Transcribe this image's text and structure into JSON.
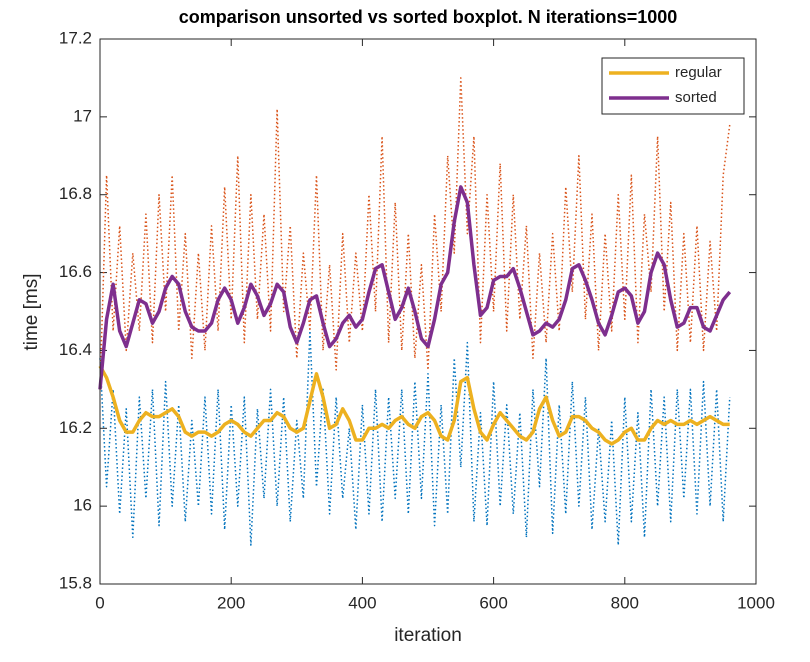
{
  "chart_data": {
    "type": "line",
    "title": "comparison unsorted vs sorted boxplot. N iterations=1000",
    "x_label": "iteration",
    "y_label": "time [ms]",
    "xlim": [
      0,
      1000
    ],
    "ylim": [
      15.8,
      17.2
    ],
    "xticks": [
      0,
      200,
      400,
      600,
      800,
      1000
    ],
    "yticks": [
      15.8,
      16,
      16.2,
      16.4,
      16.6,
      16.8,
      17,
      17.2
    ],
    "legend": "northeast",
    "x": [
      0,
      10,
      20,
      30,
      40,
      50,
      60,
      70,
      80,
      90,
      100,
      110,
      120,
      130,
      140,
      150,
      160,
      170,
      180,
      190,
      200,
      210,
      220,
      230,
      240,
      250,
      260,
      270,
      280,
      290,
      300,
      310,
      320,
      330,
      340,
      350,
      360,
      370,
      380,
      390,
      400,
      410,
      420,
      430,
      440,
      450,
      460,
      470,
      480,
      490,
      500,
      510,
      520,
      530,
      540,
      550,
      560,
      570,
      580,
      590,
      600,
      610,
      620,
      630,
      640,
      650,
      660,
      670,
      680,
      690,
      700,
      710,
      720,
      730,
      740,
      750,
      760,
      770,
      780,
      790,
      800,
      810,
      820,
      830,
      840,
      850,
      860,
      870,
      880,
      890,
      900,
      910,
      920,
      930,
      940,
      950,
      960
    ],
    "series": [
      {
        "color": "#0072BD",
        "style": "dotted",
        "values": [
          16.38,
          16.05,
          16.3,
          15.98,
          16.25,
          15.92,
          16.28,
          16.02,
          16.3,
          15.95,
          16.32,
          16.0,
          16.26,
          15.96,
          16.22,
          16.0,
          16.28,
          15.98,
          16.3,
          15.94,
          16.26,
          16.0,
          16.28,
          15.9,
          16.25,
          16.02,
          16.3,
          16.0,
          16.28,
          15.96,
          16.22,
          16.02,
          16.45,
          16.05,
          16.3,
          15.98,
          16.28,
          16.02,
          16.2,
          15.94,
          16.26,
          15.98,
          16.3,
          15.96,
          16.28,
          16.02,
          16.3,
          15.98,
          16.32,
          16.02,
          16.34,
          15.95,
          16.26,
          15.98,
          16.38,
          16.1,
          16.42,
          15.96,
          16.24,
          15.95,
          16.32,
          16.0,
          16.26,
          15.98,
          16.24,
          15.92,
          16.3,
          16.05,
          16.38,
          15.93,
          16.26,
          15.98,
          16.32,
          16.0,
          16.28,
          15.94,
          16.2,
          15.96,
          16.22,
          15.9,
          16.28,
          15.96,
          16.24,
          15.92,
          16.3,
          16.0,
          16.28,
          15.96,
          16.3,
          16.02,
          16.3,
          15.98,
          16.32,
          16.0,
          16.3,
          15.96,
          16.28
        ]
      },
      {
        "color": "#D95319",
        "style": "dotted",
        "values": [
          16.3,
          16.85,
          16.45,
          16.72,
          16.4,
          16.65,
          16.45,
          16.75,
          16.42,
          16.8,
          16.5,
          16.85,
          16.45,
          16.7,
          16.38,
          16.65,
          16.4,
          16.72,
          16.45,
          16.82,
          16.48,
          16.9,
          16.42,
          16.8,
          16.48,
          16.75,
          16.45,
          17.02,
          16.5,
          16.72,
          16.38,
          16.65,
          16.45,
          16.85,
          16.4,
          16.62,
          16.35,
          16.7,
          16.42,
          16.65,
          16.45,
          16.8,
          16.5,
          16.95,
          16.42,
          16.78,
          16.4,
          16.7,
          16.38,
          16.62,
          16.35,
          16.75,
          16.5,
          16.9,
          16.65,
          17.1,
          16.7,
          16.95,
          16.42,
          16.8,
          16.5,
          16.88,
          16.45,
          16.8,
          16.48,
          16.72,
          16.38,
          16.65,
          16.42,
          16.7,
          16.45,
          16.82,
          16.55,
          16.9,
          16.48,
          16.75,
          16.4,
          16.7,
          16.45,
          16.8,
          16.48,
          16.85,
          16.42,
          16.75,
          16.55,
          16.95,
          16.5,
          16.78,
          16.4,
          16.7,
          16.42,
          16.72,
          16.4,
          16.68,
          16.45,
          16.85,
          16.98
        ]
      },
      {
        "name": "regular",
        "color": "#EDB120",
        "style": "solid",
        "values": [
          16.36,
          16.33,
          16.28,
          16.22,
          16.19,
          16.19,
          16.22,
          16.24,
          16.23,
          16.23,
          16.24,
          16.25,
          16.23,
          16.19,
          16.18,
          16.19,
          16.19,
          16.18,
          16.19,
          16.21,
          16.22,
          16.21,
          16.19,
          16.18,
          16.2,
          16.22,
          16.22,
          16.24,
          16.23,
          16.2,
          16.19,
          16.2,
          16.27,
          16.34,
          16.28,
          16.2,
          16.21,
          16.25,
          16.22,
          16.17,
          16.17,
          16.2,
          16.2,
          16.21,
          16.2,
          16.22,
          16.23,
          16.21,
          16.2,
          16.23,
          16.24,
          16.22,
          16.18,
          16.17,
          16.22,
          16.32,
          16.33,
          16.25,
          16.19,
          16.17,
          16.21,
          16.24,
          16.22,
          16.2,
          16.18,
          16.17,
          16.19,
          16.25,
          16.28,
          16.22,
          16.18,
          16.19,
          16.23,
          16.23,
          16.22,
          16.2,
          16.19,
          16.17,
          16.16,
          16.17,
          16.19,
          16.2,
          16.17,
          16.17,
          16.2,
          16.22,
          16.21,
          16.22,
          16.21,
          16.21,
          16.22,
          16.21,
          16.22,
          16.23,
          16.22,
          16.21,
          16.21
        ]
      },
      {
        "name": "sorted",
        "color": "#7E2F8E",
        "style": "solid",
        "values": [
          16.3,
          16.48,
          16.57,
          16.45,
          16.41,
          16.47,
          16.53,
          16.52,
          16.47,
          16.5,
          16.56,
          16.59,
          16.57,
          16.5,
          16.46,
          16.45,
          16.45,
          16.47,
          16.53,
          16.56,
          16.53,
          16.47,
          16.51,
          16.57,
          16.54,
          16.49,
          16.52,
          16.57,
          16.55,
          16.46,
          16.42,
          16.47,
          16.53,
          16.54,
          16.47,
          16.41,
          16.43,
          16.47,
          16.49,
          16.46,
          16.48,
          16.55,
          16.61,
          16.62,
          16.55,
          16.48,
          16.51,
          16.56,
          16.5,
          16.43,
          16.41,
          16.48,
          16.57,
          16.6,
          16.73,
          16.82,
          16.78,
          16.62,
          16.49,
          16.51,
          16.58,
          16.59,
          16.59,
          16.61,
          16.56,
          16.5,
          16.44,
          16.45,
          16.47,
          16.46,
          16.48,
          16.53,
          16.61,
          16.62,
          16.58,
          16.53,
          16.47,
          16.44,
          16.49,
          16.55,
          16.56,
          16.54,
          16.47,
          16.5,
          16.6,
          16.65,
          16.62,
          16.53,
          16.46,
          16.47,
          16.51,
          16.51,
          16.46,
          16.45,
          16.49,
          16.53,
          16.55
        ]
      }
    ]
  }
}
